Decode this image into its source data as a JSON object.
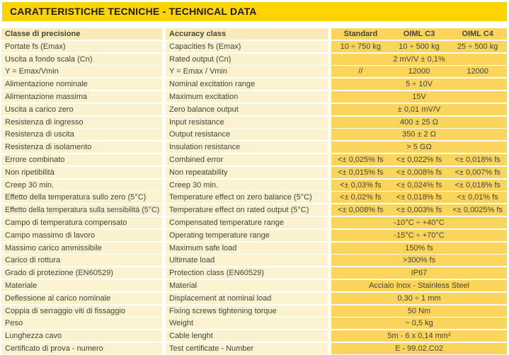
{
  "title": "CARATTERISTICHE TECNICHE - TECHNICAL DATA",
  "colors": {
    "bar_yellow": "#FFD300",
    "value_yellow": "#FBD45C",
    "label_cream": "#FBF2CF",
    "header_cream": "#F8EBB8",
    "title_text": "#1D1D1B",
    "table_text": "#45443C"
  },
  "table": {
    "header": {
      "it": "Classe di precisione",
      "en": "Accuracy class",
      "cols": [
        "Standard",
        "OIML C3",
        "OIML C4"
      ]
    },
    "rows": [
      {
        "it": "Portate fs (Emax)",
        "en": "Capacities fs (Emax)",
        "values": [
          "10 ÷ 750 kg",
          "10 ÷ 500 kg",
          "25 ÷ 500 kg"
        ]
      },
      {
        "it": "Uscita a fondo scala (Cn)",
        "en": "Rated output (Cn)",
        "values": [
          "2 mV/V ± 0,1%"
        ]
      },
      {
        "it": "Y = Emax/Vmin",
        "en": "Y = Emax / Vmin",
        "values": [
          "//",
          "12000",
          "12000"
        ]
      },
      {
        "it": "Alimentazione nominale",
        "en": "Nominal excitation range",
        "values": [
          "5 ÷ 10V"
        ]
      },
      {
        "it": "Alimentazione massima",
        "en": "Maximum excitation",
        "values": [
          "15V"
        ]
      },
      {
        "it": "Uscita a carico zero",
        "en": "Zero balance output",
        "values": [
          "± 0,01 mV/V"
        ]
      },
      {
        "it": "Resistenza di ingresso",
        "en": "Input resistance",
        "values": [
          "400 ± 25 Ω"
        ]
      },
      {
        "it": "Resistenza di uscita",
        "en": "Output resistance",
        "values": [
          "350 ± 2 Ω"
        ]
      },
      {
        "it": "Resistenza di isolamento",
        "en": "Insulation resistance",
        "values": [
          "> 5 GΩ"
        ]
      },
      {
        "it": "Errore combinato",
        "en": "Combined error",
        "values": [
          "<± 0,025% fs",
          "<± 0,022% fs",
          "<± 0,018% fs"
        ]
      },
      {
        "it": "Non ripetibilità",
        "en": "Non repeatability",
        "values": [
          "<± 0,015% fs",
          "<± 0,008% fs",
          "<± 0,007% fs"
        ]
      },
      {
        "it": "Creep 30 min.",
        "en": "Creep 30 min.",
        "values": [
          "<± 0,03% fs",
          "<± 0,024% fs",
          "<± 0,018% fs"
        ]
      },
      {
        "it": "Effetto della temperatura sullo zero (5°C)",
        "en": "Temperature effect on zero balance (5°C)",
        "values": [
          "<± 0,02% fs",
          "<± 0,018% fs",
          "<± 0,01% fs"
        ]
      },
      {
        "it": "Effetto della temperatura sulla sensibilità (5°C)",
        "en": "Temperature effect on rated output (5°C)",
        "values": [
          "<± 0,008% fs",
          "<± 0,003% fs",
          "<± 0,0025% fs"
        ]
      },
      {
        "it": "Campo di temperatura compensato",
        "en": "Compensated temperature range",
        "values": [
          "-10°C ÷ +40°C"
        ]
      },
      {
        "it": "Campo massimo di lavoro",
        "en": "Operating temperature range",
        "values": [
          "-15°C ÷ +70°C"
        ]
      },
      {
        "it": "Massimo carico ammissibile",
        "en": "Maximum safe load",
        "values": [
          "150% fs"
        ]
      },
      {
        "it": "Carico di rottura",
        "en": "Ultimate load",
        "values": [
          ">300% fs"
        ]
      },
      {
        "it": "Grado di protezione (EN60529)",
        "en": "Protection class (EN60529)",
        "values": [
          "IP67"
        ]
      },
      {
        "it": "Materiale",
        "en": "Material",
        "values": [
          "Acciaio Inox - Stainless Steel"
        ]
      },
      {
        "it": "Deflessione al carico nominale",
        "en": "Displacement at nominal load",
        "values": [
          "0,30 ÷ 1 mm"
        ]
      },
      {
        "it": "Coppia di serraggio viti di fissaggio",
        "en": "Fixing screws tightening torque",
        "values": [
          "50 Nm"
        ]
      },
      {
        "it": "Peso",
        "en": "Weight",
        "values": [
          "~ 0,5 kg"
        ]
      },
      {
        "it": "Lunghezza cavo",
        "en": "Cable lenght",
        "values": [
          "5m - 6 x 0,14 mm²"
        ]
      },
      {
        "it": "Certificato di prova - numero",
        "en": "Test certificate - Number",
        "values": [
          "E - 99.02.C02"
        ]
      }
    ]
  }
}
